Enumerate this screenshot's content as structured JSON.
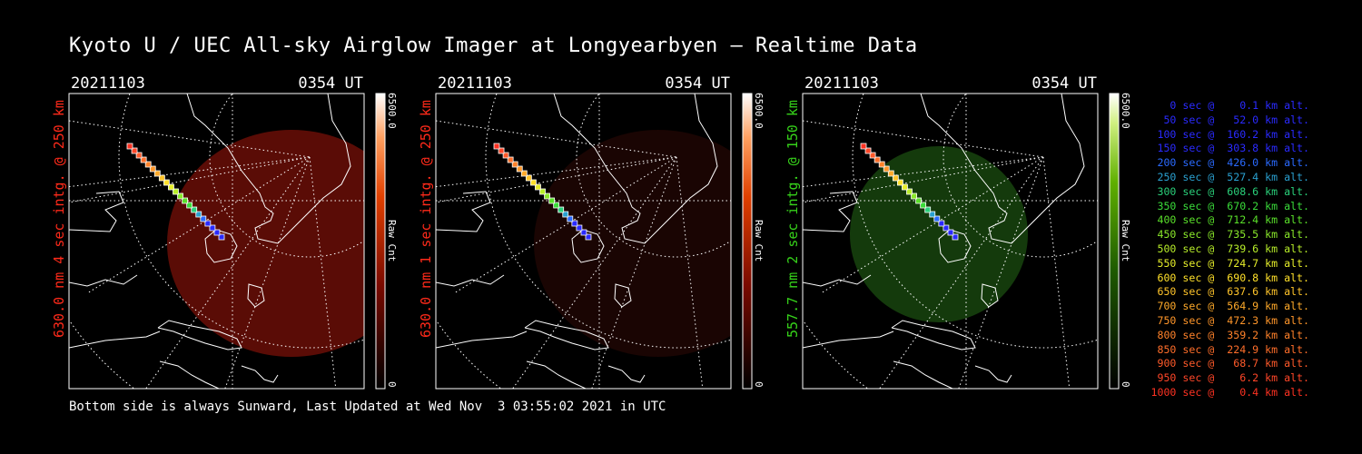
{
  "title": "Kyoto U / UEC All-sky Airglow Imager at Longyearbyen — Realtime Data",
  "footer": "Bottom side is always Sunward, Last Updated at Wed Nov  3 03:55:02 2021 in UTC",
  "panels": [
    {
      "date": "20211103",
      "time": "0354 UT",
      "side_label": "630.0 nm 4 sec intg. @ 250 km",
      "label_color": "#ff2a1a",
      "colorbar_max": "6500.0",
      "colorbar_min": "0",
      "colorbar_unit": "Raw Cnt",
      "glow_color": "#5a0c06",
      "scale": "red"
    },
    {
      "date": "20211103",
      "time": "0354 UT",
      "side_label": "630.0 nm 1 sec intg. @ 250 km",
      "label_color": "#ff2a1a",
      "colorbar_max": "6500.0",
      "colorbar_min": "0",
      "colorbar_unit": "Raw Cnt",
      "glow_color": "#1a0503",
      "scale": "red"
    },
    {
      "date": "20211103",
      "time": "0354 UT",
      "side_label": "557.7 nm 2 sec intg. @ 150 km",
      "label_color": "#36d21a",
      "colorbar_max": "6500.0",
      "colorbar_min": "0",
      "colorbar_unit": "Raw Cnt",
      "glow_color": "#143a0c",
      "scale": "green"
    }
  ],
  "legend": [
    {
      "text": "   0 sec @    0.1 km alt.",
      "color": "#2a2aff"
    },
    {
      "text": "  50 sec @   52.0 km alt.",
      "color": "#2a2aff"
    },
    {
      "text": " 100 sec @  160.2 km alt.",
      "color": "#2a2aff"
    },
    {
      "text": " 150 sec @  303.8 km alt.",
      "color": "#2a2aff"
    },
    {
      "text": " 200 sec @  426.0 km alt.",
      "color": "#2a6aff"
    },
    {
      "text": " 250 sec @  527.4 km alt.",
      "color": "#2aa0d0"
    },
    {
      "text": " 300 sec @  608.6 km alt.",
      "color": "#2ad07a"
    },
    {
      "text": " 350 sec @  670.2 km alt.",
      "color": "#3adc3a"
    },
    {
      "text": " 400 sec @  712.4 km alt.",
      "color": "#5ae02a"
    },
    {
      "text": " 450 sec @  735.5 km alt.",
      "color": "#8ae82a"
    },
    {
      "text": " 500 sec @  739.6 km alt.",
      "color": "#b8ee2a"
    },
    {
      "text": " 550 sec @  724.7 km alt.",
      "color": "#e6ee2a"
    },
    {
      "text": " 600 sec @  690.8 km alt.",
      "color": "#ffe02a"
    },
    {
      "text": " 650 sec @  637.6 km alt.",
      "color": "#ffc42a"
    },
    {
      "text": " 700 sec @  564.9 km alt.",
      "color": "#ffaa2a"
    },
    {
      "text": " 750 sec @  472.3 km alt.",
      "color": "#ff962a"
    },
    {
      "text": " 800 sec @  359.2 km alt.",
      "color": "#ff822a"
    },
    {
      "text": " 850 sec @  224.9 km alt.",
      "color": "#ff6e2a"
    },
    {
      "text": " 900 sec @   68.7 km alt.",
      "color": "#ff5a2a"
    },
    {
      "text": " 950 sec @    6.2 km alt.",
      "color": "#ff4628"
    },
    {
      "text": "1000 sec @    0.4 km alt.",
      "color": "#ff3222"
    }
  ]
}
